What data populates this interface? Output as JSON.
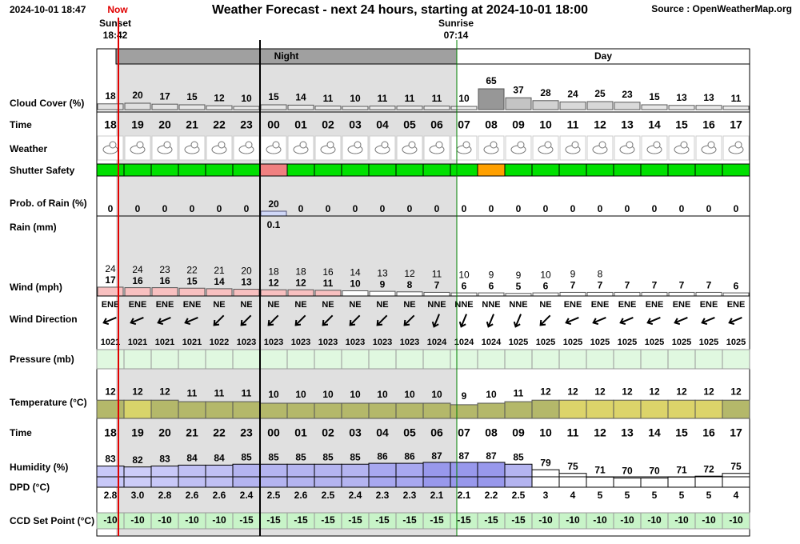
{
  "header": {
    "updated": "2024-10-01 18:47",
    "now": "Now",
    "title": "Weather Forecast - next 24 hours, starting at 2024-10-01 18:00",
    "source": "Source : OpenWeatherMap.org",
    "sunset_label": "Sunset",
    "sunset_time": "18:42",
    "sunrise_label": "Sunrise",
    "sunrise_time": "07:14",
    "night": "Night",
    "day": "Day"
  },
  "hours": [
    "18",
    "19",
    "20",
    "21",
    "22",
    "23",
    "00",
    "01",
    "02",
    "03",
    "04",
    "05",
    "06",
    "07",
    "08",
    "09",
    "10",
    "11",
    "12",
    "13",
    "14",
    "15",
    "16",
    "17"
  ],
  "time_label": "Time",
  "cloud_cover": {
    "label": "Cloud Cover (%)",
    "values": [
      18,
      20,
      17,
      15,
      12,
      10,
      15,
      14,
      11,
      10,
      11,
      11,
      11,
      10,
      65,
      37,
      28,
      24,
      25,
      23,
      15,
      13,
      13,
      11
    ]
  },
  "weather": {
    "label": "Weather"
  },
  "shutter_safety": {
    "label": "Shutter Safety",
    "colors": [
      "#00e000",
      "#00e000",
      "#00e000",
      "#00e000",
      "#00e000",
      "#00e000",
      "#f08080",
      "#00e000",
      "#00e000",
      "#00e000",
      "#00e000",
      "#00e000",
      "#00e000",
      "#00e000",
      "#ffa000",
      "#00e000",
      "#00e000",
      "#00e000",
      "#00e000",
      "#00e000",
      "#00e000",
      "#00e000",
      "#00e000",
      "#00e000"
    ]
  },
  "rain_probability": {
    "label": "Prob. of Rain (%)",
    "values": [
      0,
      0,
      0,
      0,
      0,
      0,
      20,
      0,
      0,
      0,
      0,
      0,
      0,
      0,
      0,
      0,
      0,
      0,
      0,
      0,
      0,
      0,
      0,
      0
    ]
  },
  "rain": {
    "label": "Rain (mm)",
    "values": [
      null,
      null,
      null,
      null,
      null,
      null,
      0.1,
      null,
      null,
      null,
      null,
      null,
      null,
      null,
      null,
      null,
      null,
      null,
      null,
      null,
      null,
      null,
      null,
      null
    ]
  },
  "wind": {
    "label": "Wind (mph)",
    "gusts": [
      24,
      24,
      23,
      22,
      21,
      20,
      18,
      18,
      16,
      14,
      13,
      12,
      11,
      10,
      9,
      9,
      10,
      9,
      8,
      null,
      null,
      null,
      null,
      null
    ],
    "speeds": [
      17,
      16,
      16,
      15,
      14,
      13,
      12,
      12,
      11,
      10,
      9,
      8,
      7,
      6,
      6,
      5,
      6,
      7,
      7,
      7,
      7,
      7,
      7,
      6
    ],
    "colors": [
      "#f8c0c0",
      "#f8c0c0",
      "#f8c0c0",
      "#f8c0c0",
      "#f8c0c0",
      "#f8c0c0",
      "#f8c0c0",
      "#f8c0c0",
      "#f8c0c0",
      "#ffffff",
      "#ffffff",
      "#ffffff",
      "#ffffff",
      "#ffffff",
      "#ffffff",
      "#ffffff",
      "#ffffff",
      "#ffffff",
      "#ffffff",
      "#ffffff",
      "#ffffff",
      "#ffffff",
      "#ffffff",
      "#ffffff"
    ]
  },
  "wind_direction": {
    "label": "Wind Direction",
    "values": [
      "ENE",
      "ENE",
      "ENE",
      "ENE",
      "NE",
      "NE",
      "NE",
      "NE",
      "NE",
      "NE",
      "NE",
      "NE",
      "NNE",
      "NNE",
      "NNE",
      "NNE",
      "NE",
      "ENE",
      "ENE",
      "ENE",
      "ENE",
      "ENE",
      "ENE",
      "ENE"
    ]
  },
  "pressure": {
    "label": "Pressure (mb)",
    "values": [
      1021,
      1021,
      1021,
      1021,
      1022,
      1023,
      1023,
      1023,
      1023,
      1023,
      1023,
      1023,
      1024,
      1024,
      1024,
      1025,
      1025,
      1025,
      1025,
      1025,
      1025,
      1025,
      1025,
      1025
    ]
  },
  "temperature": {
    "label": "Temperature (°C)",
    "values": [
      12,
      12,
      12,
      11,
      11,
      11,
      10,
      10,
      10,
      10,
      10,
      10,
      10,
      9,
      10,
      11,
      12,
      12,
      12,
      12,
      12,
      12,
      12,
      12
    ],
    "colors": [
      "#b4b86a",
      "#d8d46a",
      "#b4b86a",
      "#b4b86a",
      "#b4b86a",
      "#b4b86a",
      "#b4b86a",
      "#b4b86a",
      "#b4b86a",
      "#b4b86a",
      "#b4b86a",
      "#b4b86a",
      "#b4b86a",
      "#b4b86a",
      "#b4b86a",
      "#b4b86a",
      "#b4b86a",
      "#dcd46a",
      "#dcd46a",
      "#dcd46a",
      "#dcd46a",
      "#dcd46a",
      "#dcd46a",
      "#b4b86a"
    ]
  },
  "humidity": {
    "label": "Humidity (%)",
    "values": [
      83,
      82,
      83,
      84,
      84,
      85,
      85,
      85,
      85,
      85,
      86,
      86,
      87,
      87,
      87,
      85,
      79,
      75,
      71,
      70,
      70,
      71,
      72,
      75
    ],
    "colors": [
      "#c8c8f8",
      "#ccccf8",
      "#c8c8f8",
      "#c0c0f4",
      "#c0c0f4",
      "#b4b4f0",
      "#b4b4f0",
      "#b4b4f0",
      "#b4b4f0",
      "#b4b4f0",
      "#a8a8f0",
      "#a8a8f0",
      "#9898ec",
      "#9898ec",
      "#9898ec",
      "#b4b4f0",
      "#ffffff",
      "#ffffff",
      "#ffffff",
      "#ffffff",
      "#ffffff",
      "#ffffff",
      "#ffffff",
      "#ffffff"
    ]
  },
  "dpd": {
    "label": "DPD (°C)",
    "values": [
      2.8,
      3,
      2.8,
      2.6,
      2.6,
      2.4,
      2.5,
      2.6,
      2.5,
      2.4,
      2.3,
      2.3,
      2.1,
      2.1,
      2.2,
      2.5,
      3,
      4,
      5,
      5,
      5,
      5,
      5,
      4
    ],
    "value_labels": [
      "2.8",
      "3.0",
      "2.8",
      "2.6",
      "2.6",
      "2.4",
      "2.5",
      "2.6",
      "2.5",
      "2.4",
      "2.3",
      "2.3",
      "2.1",
      "2.1",
      "2.2",
      "2.5",
      "3",
      "4",
      "5",
      "5",
      "5",
      "5",
      "5",
      "4"
    ]
  },
  "ccd_set_point": {
    "label": "CCD Set Point (°C)",
    "values": [
      -10,
      -10,
      -10,
      -10,
      -10,
      -15,
      -15,
      -15,
      -15,
      -15,
      -15,
      -15,
      -15,
      -15,
      -15,
      -15,
      -10,
      -10,
      -10,
      -10,
      -10,
      -10,
      -10,
      -10
    ]
  }
}
